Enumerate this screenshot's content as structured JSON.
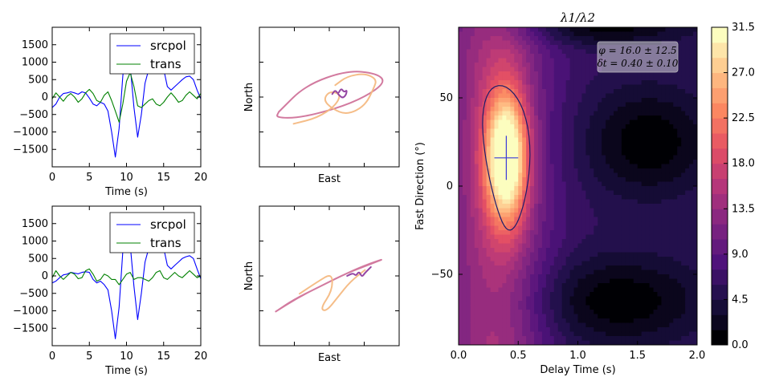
{
  "chart_data": [
    {
      "type": "line",
      "panel": "waveform-top",
      "xlabel": "Time (s)",
      "ylabel": "",
      "xlim": [
        0,
        20
      ],
      "ylim": [
        -2000,
        2000
      ],
      "xticks": [
        0,
        5,
        10,
        15,
        20
      ],
      "yticks": [
        -1500,
        -1000,
        -500,
        0,
        500,
        1000,
        1500
      ],
      "legend_position": "top-right",
      "series": [
        {
          "name": "srcpol",
          "color": "#0000ff",
          "x": [
            0,
            0.5,
            1,
            1.5,
            2,
            2.5,
            3,
            3.5,
            4,
            4.5,
            5,
            5.5,
            6,
            6.5,
            7,
            7.5,
            8,
            8.5,
            9,
            9.5,
            10,
            10.5,
            11,
            11.5,
            12,
            12.5,
            13,
            13.5,
            14,
            14.5,
            15,
            15.5,
            16,
            16.5,
            17,
            17.5,
            18,
            18.5,
            19,
            19.5,
            20
          ],
          "y": [
            -300,
            -200,
            0,
            100,
            120,
            150,
            120,
            80,
            150,
            120,
            -30,
            -200,
            -250,
            -150,
            -200,
            -400,
            -1000,
            -1720,
            -900,
            600,
            1580,
            900,
            -300,
            -1150,
            -500,
            400,
            800,
            1000,
            1200,
            1420,
            800,
            300,
            200,
            300,
            400,
            500,
            580,
            600,
            500,
            200,
            -50
          ]
        },
        {
          "name": "trans",
          "color": "#008000",
          "x": [
            0,
            0.5,
            1,
            1.5,
            2,
            2.5,
            3,
            3.5,
            4,
            4.5,
            5,
            5.5,
            6,
            6.5,
            7,
            7.5,
            8,
            8.5,
            9,
            9.5,
            10,
            10.5,
            11,
            11.5,
            12,
            12.5,
            13,
            13.5,
            14,
            14.5,
            15,
            15.5,
            16,
            16.5,
            17,
            17.5,
            18,
            18.5,
            19,
            19.5,
            20
          ],
          "y": [
            -50,
            120,
            0,
            -120,
            20,
            100,
            0,
            -150,
            -50,
            120,
            220,
            100,
            -100,
            -150,
            50,
            150,
            -100,
            -400,
            -720,
            -200,
            450,
            700,
            300,
            -250,
            -300,
            -200,
            -100,
            -50,
            -200,
            -250,
            -150,
            0,
            120,
            0,
            -150,
            -100,
            50,
            150,
            50,
            -50,
            100
          ]
        }
      ]
    },
    {
      "type": "line",
      "panel": "waveform-bottom",
      "xlabel": "Time (s)",
      "ylabel": "",
      "xlim": [
        0,
        20
      ],
      "ylim": [
        -2000,
        2000
      ],
      "xticks": [
        0,
        5,
        10,
        15,
        20
      ],
      "yticks": [
        -1500,
        -1000,
        -500,
        0,
        500,
        1000,
        1500
      ],
      "legend_position": "top-right",
      "series": [
        {
          "name": "srcpol",
          "color": "#0000ff",
          "x": [
            0,
            0.5,
            1,
            1.5,
            2,
            2.5,
            3,
            3.5,
            4,
            4.5,
            5,
            5.5,
            6,
            6.5,
            7,
            7.5,
            8,
            8.5,
            9,
            9.5,
            10,
            10.5,
            11,
            11.5,
            12,
            12.5,
            13,
            13.5,
            14,
            14.5,
            15,
            15.5,
            16,
            16.5,
            17,
            17.5,
            18,
            18.5,
            19,
            19.5,
            20
          ],
          "y": [
            -200,
            -150,
            -50,
            30,
            50,
            100,
            80,
            60,
            100,
            120,
            100,
            -100,
            -200,
            -150,
            -250,
            -400,
            -1000,
            -1800,
            -900,
            700,
            1650,
            900,
            -300,
            -1250,
            -500,
            400,
            800,
            1000,
            1200,
            1450,
            800,
            300,
            200,
            300,
            400,
            500,
            550,
            580,
            500,
            200,
            -80
          ]
        },
        {
          "name": "trans",
          "color": "#008000",
          "x": [
            0,
            0.5,
            1,
            1.5,
            2,
            2.5,
            3,
            3.5,
            4,
            4.5,
            5,
            5.5,
            6,
            6.5,
            7,
            7.5,
            8,
            8.5,
            9,
            9.5,
            10,
            10.5,
            11,
            11.5,
            12,
            12.5,
            13,
            13.5,
            14,
            14.5,
            15,
            15.5,
            16,
            16.5,
            17,
            17.5,
            18,
            18.5,
            19,
            19.5,
            20
          ],
          "y": [
            -50,
            150,
            0,
            -100,
            0,
            100,
            50,
            -80,
            -50,
            150,
            200,
            50,
            -150,
            -100,
            50,
            0,
            -100,
            -100,
            -250,
            -100,
            50,
            100,
            -100,
            -50,
            -50,
            -100,
            -150,
            -50,
            100,
            150,
            -50,
            -100,
            0,
            100,
            0,
            -50,
            50,
            150,
            50,
            -50,
            0
          ]
        }
      ]
    },
    {
      "type": "scatter",
      "panel": "particle-motion-top",
      "xlabel": "East",
      "ylabel": "North",
      "series": [
        {
          "name": "",
          "color": "#d0739a",
          "x": [
            -0.85,
            -0.4,
            0.3,
            0.8,
            0.95,
            0.6,
            0.1,
            -0.5,
            -0.9,
            -0.85
          ],
          "y": [
            -0.25,
            0.2,
            0.45,
            0.4,
            0.25,
            0.0,
            -0.2,
            -0.35,
            -0.35,
            -0.25
          ]
        },
        {
          "name": "",
          "color": "#f4b982",
          "x": [
            -0.6,
            -0.2,
            0.1,
            0.2,
            0.0,
            -0.1,
            0.05,
            0.3,
            0.6,
            0.75,
            0.8,
            0.6,
            0.3,
            0.1
          ],
          "y": [
            -0.45,
            -0.35,
            -0.15,
            0.05,
            0.1,
            -0.05,
            -0.2,
            -0.3,
            -0.15,
            0.15,
            0.3,
            0.4,
            0.35,
            0.2
          ]
        },
        {
          "name": "",
          "color": "#8e3c9e",
          "x": [
            0.05,
            0.1,
            0.15,
            0.2,
            0.25,
            0.3,
            0.28,
            0.22,
            0.15
          ],
          "y": [
            0.05,
            0.12,
            0.05,
            0.15,
            0.08,
            0.12,
            0.03,
            -0.02,
            0.05
          ]
        }
      ]
    },
    {
      "type": "scatter",
      "panel": "particle-motion-bottom",
      "xlabel": "East",
      "ylabel": "North",
      "series": [
        {
          "name": "",
          "color": "#d0739a",
          "x": [
            -0.9,
            -0.5,
            -0.1,
            0.3,
            0.7,
            0.95,
            0.6,
            0.2,
            -0.2,
            -0.6,
            -0.9
          ],
          "y": [
            -0.6,
            -0.35,
            -0.15,
            0.05,
            0.2,
            0.3,
            0.18,
            0.0,
            -0.2,
            -0.4,
            -0.6
          ]
        },
        {
          "name": "",
          "color": "#f4b982",
          "x": [
            -0.5,
            -0.2,
            0.05,
            0.05,
            -0.15,
            -0.05,
            0.15,
            0.35,
            0.6
          ],
          "y": [
            -0.3,
            -0.1,
            0.05,
            -0.25,
            -0.55,
            -0.6,
            -0.35,
            -0.1,
            0.1
          ]
        },
        {
          "name": "",
          "color": "#8e3c9e",
          "x": [
            0.3,
            0.4,
            0.45,
            0.5,
            0.55,
            0.6,
            0.65,
            0.7
          ],
          "y": [
            0.0,
            0.05,
            0.0,
            0.08,
            -0.02,
            0.05,
            0.1,
            0.15
          ]
        }
      ]
    },
    {
      "type": "heatmap",
      "panel": "error-surface",
      "title": "λ1/λ2",
      "xlabel": "Delay Time (s)",
      "ylabel": "Fast Direction (°)",
      "xlim": [
        0,
        2
      ],
      "ylim": [
        -90,
        90
      ],
      "xticks": [
        0.0,
        0.5,
        1.0,
        1.5,
        2.0
      ],
      "xtick_labels": [
        "0.0",
        "0.5",
        "1.0",
        "1.5",
        "2.0"
      ],
      "yticks": [
        -50,
        0,
        50
      ],
      "yticks_labels": [
        "−50",
        "0",
        "50"
      ],
      "colorbar_ticks": [
        "0.0",
        "4.5",
        "9.0",
        "13.5",
        "18.0",
        "22.5",
        "27.0",
        "31.5"
      ],
      "colorbar_range": [
        0,
        31.5
      ],
      "colormap": [
        "#000004",
        "#1c1044",
        "#4f127b",
        "#812581",
        "#b5367a",
        "#e55064",
        "#fb8761",
        "#fec287",
        "#fcfdbf"
      ],
      "best_fit": {
        "delay": 0.4,
        "delay_err": 0.1,
        "phi": 16.0,
        "phi_err": 12.5
      },
      "annotation": [
        "φ = 16.0 ± 12.5",
        "δt = 0.40 ± 0.10"
      ]
    }
  ]
}
